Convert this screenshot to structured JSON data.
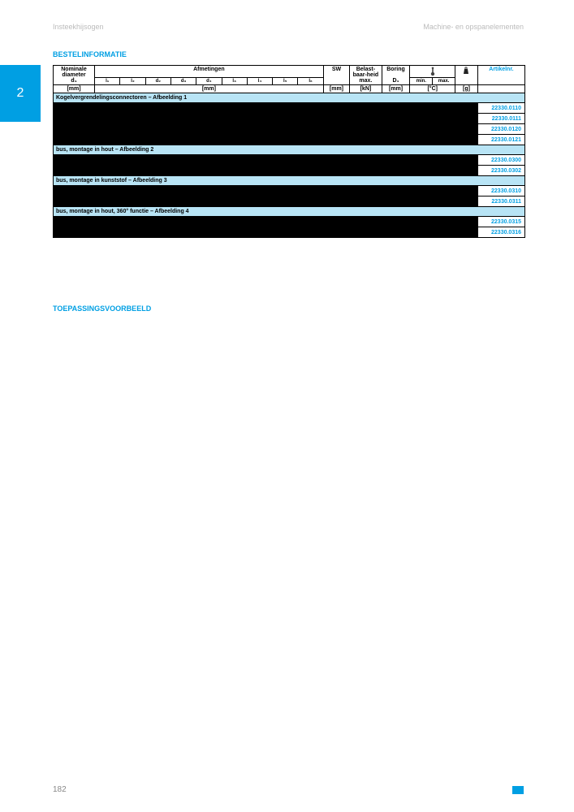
{
  "header": {
    "left": "Insteekhijsogen",
    "right": "Machine- en opspanelementen"
  },
  "sideTab": "2",
  "sections": {
    "bestel": "BESTELINFORMATIE",
    "toep": "TOEPASSINGSVOORBEELD"
  },
  "pageNumber": "182",
  "colors": {
    "accent": "#009FE3",
    "sectionBg": "#b8e4f5"
  },
  "table": {
    "headers": {
      "nominale": "Nominale diameter",
      "nominale_sym": "d₁",
      "afmetingen": "Afmetingen",
      "sw": "SW",
      "belast": "Belast-baar-heid",
      "belast_sub": "max.",
      "boring": "Boring",
      "boring_sym": "D₁",
      "temp_min": "min.",
      "temp_max": "max.",
      "artikelnr": "Artikelnr."
    },
    "subcols": [
      "l₁",
      "l₂",
      "d₂",
      "d₃",
      "d₄",
      "l₃",
      "l₄",
      "l₅",
      "l₆"
    ],
    "units": {
      "mm": "[mm]",
      "kn": "[kN]",
      "c": "[°C]",
      "g": "[g]"
    },
    "groups": [
      {
        "title": "Kogelvergrendelingsconnectoren – Afbeelding 1",
        "rows": [
          "22330.0110",
          "22330.0111",
          "22330.0120",
          "22330.0121"
        ]
      },
      {
        "title": "bus, montage in hout – Afbeelding 2",
        "rows": [
          "22330.0300",
          "22330.0302"
        ]
      },
      {
        "title": "bus, montage in kunststof – Afbeelding 3",
        "rows": [
          "22330.0310",
          "22330.0311"
        ]
      },
      {
        "title": "bus, montage in hout, 360° functie – Afbeelding 4",
        "rows": [
          "22330.0315",
          "22330.0316"
        ]
      }
    ]
  }
}
